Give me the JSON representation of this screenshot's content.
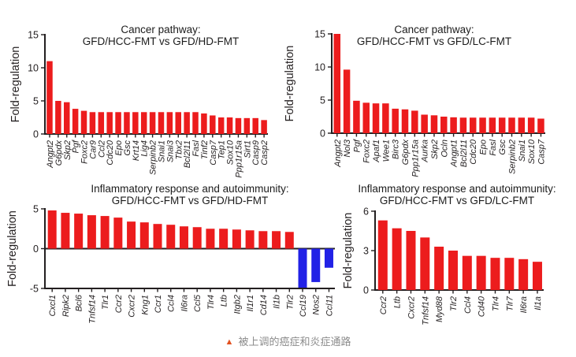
{
  "figure": {
    "background": "#ffffff",
    "bar_color_positive": "#ec1c1d",
    "bar_color_negative": "#2121e6",
    "axis_color": "#231f20"
  },
  "caption": {
    "marker": "▲",
    "marker_color": "#e2511f",
    "text": "被上调的癌症和炎症通路",
    "text_color": "#8c8c8c"
  },
  "chart_data": [
    {
      "id": "cancer-hd",
      "type": "bar",
      "title": "Cancer pathway:",
      "subtitle": "GFD/HCC-FMT vs GFD/HD-FMT",
      "ylabel": "Fold-regulation",
      "ylim": [
        0,
        15
      ],
      "yticks": [
        0,
        5,
        10,
        15
      ],
      "grid": false,
      "categories": [
        "Angpt2",
        "G6pdx",
        "Skp2",
        "Pgf",
        "Foxc2",
        "Car9",
        "Ccl2",
        "Cdc20",
        "Epo",
        "Gsc",
        "Krt14",
        "Lig4",
        "Serpinb2",
        "Snai1",
        "Snai3",
        "Tbx2",
        "Bcl2l11",
        "Fasl",
        "Tinf2",
        "Casp7",
        "Tep1",
        "Sox10",
        "Ppp1r15a",
        "Sirt1",
        "Casp9",
        "Casp2"
      ],
      "values": [
        11.0,
        5.0,
        4.8,
        3.8,
        3.5,
        3.3,
        3.3,
        3.3,
        3.3,
        3.3,
        3.3,
        3.3,
        3.3,
        3.3,
        3.3,
        3.3,
        3.3,
        3.3,
        3.1,
        2.8,
        2.5,
        2.5,
        2.4,
        2.4,
        2.4,
        2.1
      ]
    },
    {
      "id": "cancer-lc",
      "type": "bar",
      "title": "Cancer pathway:",
      "subtitle": "GFD/HCC-FMT vs GFD/LC-FMT",
      "ylabel": "Fold-regulation",
      "ylim": [
        0,
        15
      ],
      "yticks": [
        0,
        5,
        10,
        15
      ],
      "grid": false,
      "categories": [
        "Angpt2",
        "Nol3",
        "Pgf",
        "Foxc2",
        "Apaf1",
        "Wee1",
        "Birc3",
        "G6pdx",
        "Ppp1r15a",
        "Aurka",
        "Skp2",
        "Ocln",
        "Angpt1",
        "Bcl2l11",
        "Cdc20",
        "Epo",
        "Fasl",
        "Gsc",
        "Serpinb2",
        "Snai1",
        "Sox10",
        "Casp7"
      ],
      "values": [
        15.0,
        9.6,
        4.9,
        4.6,
        4.5,
        4.5,
        3.7,
        3.6,
        3.4,
        2.8,
        2.7,
        2.5,
        2.4,
        2.35,
        2.35,
        2.35,
        2.35,
        2.35,
        2.35,
        2.35,
        2.35,
        2.2
      ]
    },
    {
      "id": "inflammatory-hd",
      "type": "bar",
      "title": "Inflammatory response and autoimmunity:",
      "subtitle": "GFD/HCC-FMT vs GFD/HD-FMT",
      "ylabel": "Fold-regulation",
      "ylim": [
        -5,
        5
      ],
      "yticks": [
        -5,
        0,
        5
      ],
      "grid": false,
      "categories": [
        "Cxcl1",
        "Ripk2",
        "Bcl6",
        "Tnfsf14",
        "Tlr1",
        "Ccr2",
        "Cxcr2",
        "Kng1",
        "Ccr1",
        "Ccl4",
        "Il6ra",
        "Ccl5",
        "Tlr4",
        "Ltb",
        "Itgb2",
        "Il1r1",
        "Cd14",
        "Il1b",
        "Tlr2",
        "Ccl19",
        "Nos2",
        "Ccl11"
      ],
      "values": [
        4.8,
        4.5,
        4.4,
        4.2,
        4.1,
        3.9,
        3.4,
        3.3,
        3.1,
        3.0,
        2.8,
        2.7,
        2.5,
        2.5,
        2.4,
        2.3,
        2.2,
        2.2,
        2.1,
        -4.9,
        -4.2,
        -2.4
      ]
    },
    {
      "id": "inflammatory-lc",
      "type": "bar",
      "title": "Inflammatory response and autoimmunity:",
      "subtitle": "GFD/HCC-FMT vs GFD/LC-FMT",
      "ylabel": "Fold-regulation",
      "ylim": [
        0,
        6
      ],
      "yticks": [
        0,
        3,
        6
      ],
      "grid": false,
      "categories": [
        "Ccr2",
        "Ltb",
        "Cxcr2",
        "Tnfsf14",
        "Myd88",
        "Tlr2",
        "Ccl4",
        "Cd40",
        "Tlr4",
        "Tlr7",
        "Il6ra",
        "Il1a"
      ],
      "values": [
        5.3,
        4.7,
        4.5,
        4.0,
        3.3,
        3.0,
        2.6,
        2.6,
        2.45,
        2.45,
        2.35,
        2.15
      ]
    }
  ]
}
